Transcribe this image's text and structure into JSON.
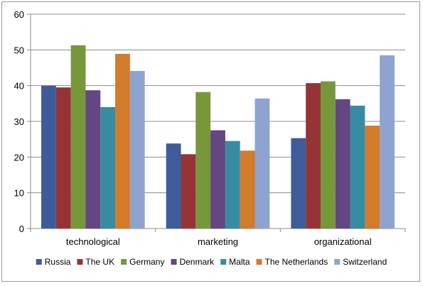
{
  "chart_data": {
    "type": "bar",
    "categories": [
      "technological",
      "marketing",
      "organizational"
    ],
    "ylim": [
      0,
      60
    ],
    "yticks": [
      0,
      10,
      20,
      30,
      40,
      50,
      60
    ],
    "grid": true,
    "legend_position": "bottom",
    "series": [
      {
        "name": "Russia",
        "color": "#3e5c9a",
        "values": [
          40.0,
          23.8,
          25.3
        ]
      },
      {
        "name": "The UK",
        "color": "#963335",
        "values": [
          39.5,
          20.8,
          40.7
        ]
      },
      {
        "name": "Germany",
        "color": "#77973b",
        "values": [
          51.3,
          38.2,
          41.2
        ]
      },
      {
        "name": "Denmark",
        "color": "#634682",
        "values": [
          38.7,
          27.5,
          36.2
        ]
      },
      {
        "name": "Malta",
        "color": "#378ca3",
        "values": [
          34.0,
          24.5,
          34.4
        ]
      },
      {
        "name": "The Netherlands",
        "color": "#d17b2b",
        "values": [
          48.9,
          21.8,
          28.8
        ]
      },
      {
        "name": "Switzerland",
        "color": "#8ea3cf",
        "values": [
          44.1,
          36.4,
          48.5
        ]
      }
    ]
  }
}
